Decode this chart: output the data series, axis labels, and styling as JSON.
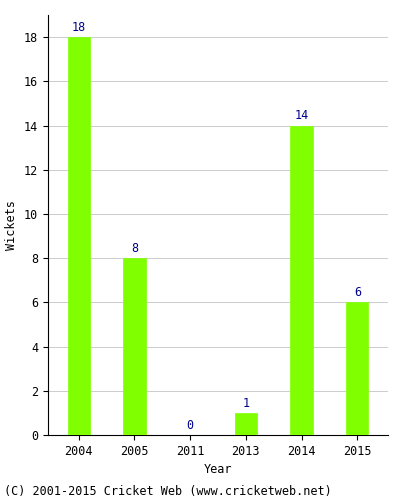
{
  "years": [
    "2004",
    "2005",
    "2011",
    "2013",
    "2014",
    "2015"
  ],
  "values": [
    18,
    8,
    0,
    1,
    14,
    6
  ],
  "bar_color": "#7FFF00",
  "bar_edgecolor": "#7FFF00",
  "label_color": "#00008B",
  "xlabel": "Year",
  "ylabel": "Wickets",
  "ylim": [
    0,
    19
  ],
  "yticks": [
    0,
    2,
    4,
    6,
    8,
    10,
    12,
    14,
    16,
    18
  ],
  "grid_color": "#cccccc",
  "background_color": "#ffffff",
  "footer_text": "(C) 2001-2015 Cricket Web (www.cricketweb.net)",
  "label_fontsize": 8.5,
  "axis_fontsize": 8.5,
  "tick_fontsize": 8.5,
  "footer_fontsize": 8.5,
  "bar_width": 0.4
}
